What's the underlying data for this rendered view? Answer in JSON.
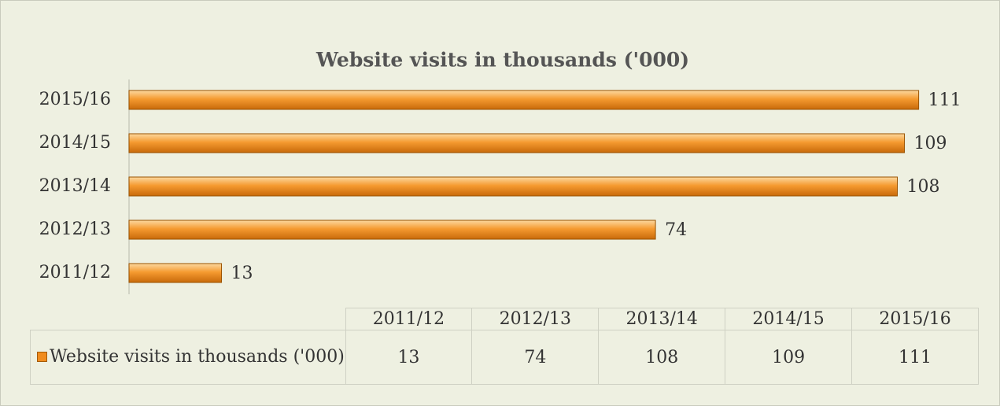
{
  "chart_data": {
    "type": "bar",
    "title": "Website visits in thousands ('000)",
    "categories": [
      "2011/12",
      "2012/13",
      "2013/14",
      "2014/15",
      "2015/16"
    ],
    "series": [
      {
        "name": "Website visits in thousands ('000)",
        "color": "#f08c1e",
        "values": [
          13,
          74,
          108,
          109,
          111
        ]
      }
    ],
    "xlim": [
      0,
      120
    ]
  }
}
